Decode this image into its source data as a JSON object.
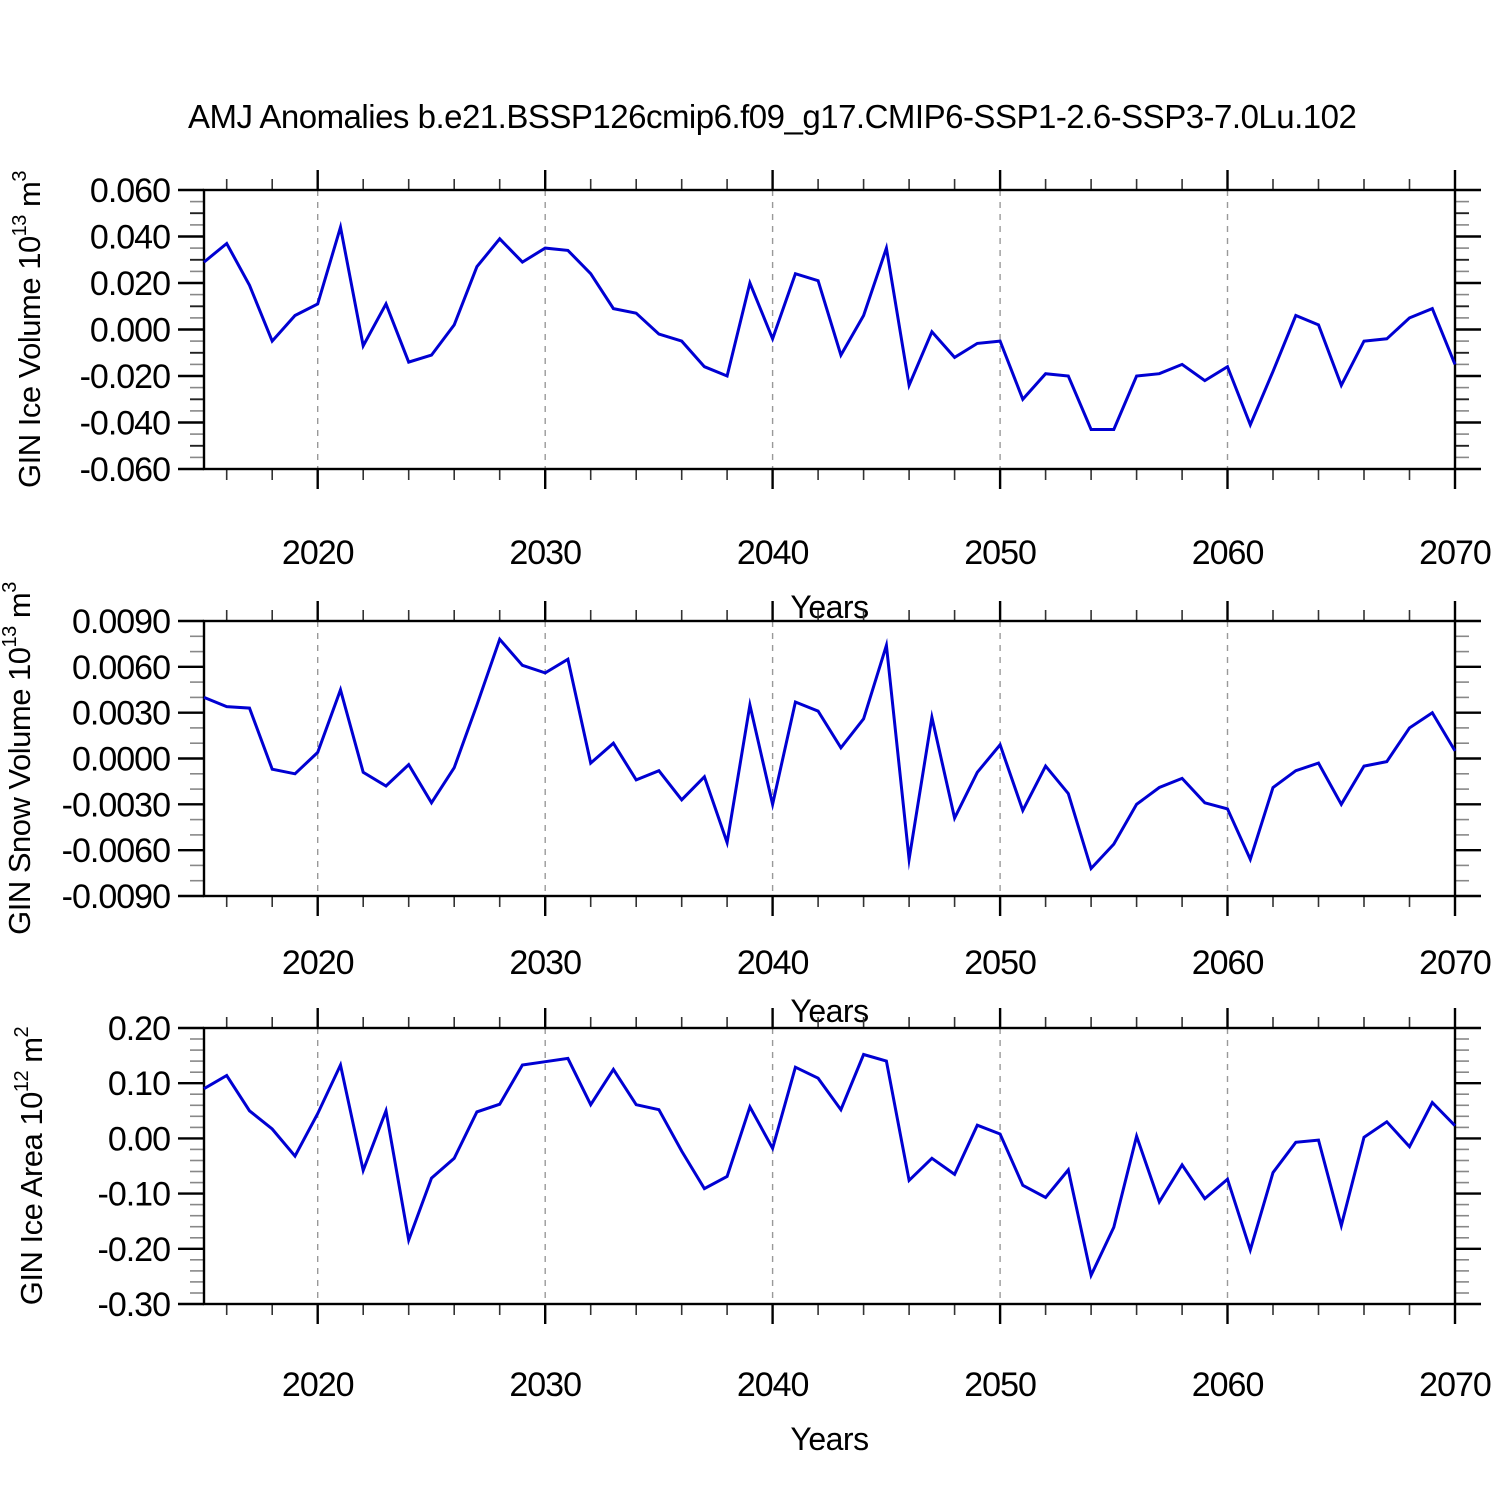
{
  "title": "AMJ Anomalies b.e21.BSSP126cmip6.f09_g17.CMIP6-SSP1-2.6-SSP3-7.0Lu.102",
  "colors": {
    "line": "#0000D2",
    "grid": "#999999",
    "axis": "#000000",
    "background": "#FFFFFF"
  },
  "chart_data": [
    {
      "type": "line",
      "name": "gin-ice-volume",
      "ylabel": "GIN Ice Volume 10^13 m^3",
      "ylabel_parts": [
        {
          "t": "GIN Ice Volume 10"
        },
        {
          "s": "13"
        },
        {
          "t": " m"
        },
        {
          "s": "3"
        }
      ],
      "ylim": [
        -0.06,
        0.06
      ],
      "ytick_labels": [
        "0.060",
        "0.040",
        "0.020",
        "0.000",
        "-0.020",
        "-0.040",
        "-0.060"
      ],
      "yminor_step": 0.005,
      "ymedium_step": 0.01,
      "xlabel": "Years",
      "xlim": [
        2015,
        2070
      ],
      "xtick_labels": [
        "2020",
        "2030",
        "2040",
        "2050",
        "2060",
        "2070"
      ],
      "xminor_step": 2,
      "grid_years": [
        2020,
        2030,
        2040,
        2050,
        2060
      ],
      "x_years": [
        2015,
        2016,
        2017,
        2018,
        2019,
        2020,
        2021,
        2022,
        2023,
        2024,
        2025,
        2026,
        2027,
        2028,
        2029,
        2030,
        2031,
        2032,
        2033,
        2034,
        2035,
        2036,
        2037,
        2038,
        2039,
        2040,
        2041,
        2042,
        2043,
        2044,
        2045,
        2046,
        2047,
        2048,
        2049,
        2050,
        2051,
        2052,
        2053,
        2054,
        2055,
        2056,
        2057,
        2058,
        2059,
        2060,
        2061,
        2062,
        2063,
        2064,
        2065,
        2066,
        2067,
        2068,
        2069,
        2070
      ],
      "values": [
        0.029,
        0.037,
        0.019,
        -0.005,
        0.006,
        0.011,
        0.044,
        -0.007,
        0.011,
        -0.014,
        -0.011,
        0.002,
        0.027,
        0.039,
        0.029,
        0.035,
        0.034,
        0.024,
        0.009,
        0.007,
        -0.002,
        -0.005,
        -0.016,
        -0.02,
        0.02,
        -0.004,
        0.024,
        0.021,
        -0.011,
        0.006,
        0.035,
        -0.024,
        -0.001,
        -0.012,
        -0.006,
        -0.005,
        -0.03,
        -0.019,
        -0.02,
        -0.043,
        -0.043,
        -0.02,
        -0.019,
        -0.015,
        -0.022,
        -0.016,
        -0.041,
        -0.018,
        0.006,
        0.002,
        -0.024,
        -0.005,
        -0.004,
        0.005,
        0.009,
        -0.015
      ]
    },
    {
      "type": "line",
      "name": "gin-snow-volume",
      "ylabel": "GIN Snow Volume 10^13 m^3",
      "ylabel_parts": [
        {
          "t": "GIN Snow Volume 10"
        },
        {
          "s": "13"
        },
        {
          "t": " m"
        },
        {
          "s": "3"
        }
      ],
      "ylim": [
        -0.009,
        0.009
      ],
      "ytick_labels": [
        "0.0090",
        "0.0060",
        "0.0030",
        "0.0000",
        "-0.0030",
        "-0.0060",
        "-0.0090"
      ],
      "yminor_step": 0.001,
      "ymedium_step": null,
      "xlabel": "Years",
      "xlim": [
        2015,
        2070
      ],
      "xtick_labels": [
        "2020",
        "2030",
        "2040",
        "2050",
        "2060",
        "2070"
      ],
      "xminor_step": 2,
      "grid_years": [
        2020,
        2030,
        2040,
        2050,
        2060
      ],
      "x_years": [
        2015,
        2016,
        2017,
        2018,
        2019,
        2020,
        2021,
        2022,
        2023,
        2024,
        2025,
        2026,
        2027,
        2028,
        2029,
        2030,
        2031,
        2032,
        2033,
        2034,
        2035,
        2036,
        2037,
        2038,
        2039,
        2040,
        2041,
        2042,
        2043,
        2044,
        2045,
        2046,
        2047,
        2048,
        2049,
        2050,
        2051,
        2052,
        2053,
        2054,
        2055,
        2056,
        2057,
        2058,
        2059,
        2060,
        2061,
        2062,
        2063,
        2064,
        2065,
        2066,
        2067,
        2068,
        2069,
        2070
      ],
      "values": [
        0.004,
        0.0034,
        0.0033,
        -0.0007,
        -0.001,
        0.0004,
        0.0045,
        -0.0009,
        -0.0018,
        -0.0004,
        -0.0029,
        -0.0006,
        0.0035,
        0.0078,
        0.0061,
        0.0056,
        0.0065,
        -0.0003,
        0.001,
        -0.0014,
        -0.0008,
        -0.0027,
        -0.0012,
        -0.0055,
        0.0035,
        -0.003,
        0.0037,
        0.0031,
        0.0007,
        0.0026,
        0.0074,
        -0.0066,
        0.0027,
        -0.0039,
        -0.0009,
        0.0009,
        -0.0034,
        -0.0005,
        -0.0023,
        -0.0072,
        -0.0056,
        -0.003,
        -0.0019,
        -0.0013,
        -0.0029,
        -0.0033,
        -0.0066,
        -0.0019,
        -0.0008,
        -0.0003,
        -0.003,
        -0.0005,
        -0.0002,
        0.002,
        0.003,
        0.0005
      ]
    },
    {
      "type": "line",
      "name": "gin-ice-area",
      "ylabel": "GIN Ice Area 10^12 m^2",
      "ylabel_parts": [
        {
          "t": "GIN Ice Area 10"
        },
        {
          "s": "12"
        },
        {
          "t": " m"
        },
        {
          "s": "2"
        }
      ],
      "ylim": [
        -0.3,
        0.2
      ],
      "ytick_labels": [
        "0.20",
        "0.10",
        "0.00",
        "-0.10",
        "-0.20",
        "-0.30"
      ],
      "yminor_step": 0.02,
      "ymedium_step": null,
      "xlabel": "Years",
      "xlim": [
        2015,
        2070
      ],
      "xtick_labels": [
        "2020",
        "2030",
        "2040",
        "2050",
        "2060",
        "2070"
      ],
      "xminor_step": 2,
      "grid_years": [
        2020,
        2030,
        2040,
        2050,
        2060
      ],
      "x_years": [
        2015,
        2016,
        2017,
        2018,
        2019,
        2020,
        2021,
        2022,
        2023,
        2024,
        2025,
        2026,
        2027,
        2028,
        2029,
        2030,
        2031,
        2032,
        2033,
        2034,
        2035,
        2036,
        2037,
        2038,
        2039,
        2040,
        2041,
        2042,
        2043,
        2044,
        2045,
        2046,
        2047,
        2048,
        2049,
        2050,
        2051,
        2052,
        2053,
        2054,
        2055,
        2056,
        2057,
        2058,
        2059,
        2060,
        2061,
        2062,
        2063,
        2064,
        2065,
        2066,
        2067,
        2068,
        2069,
        2070
      ],
      "values": [
        0.09,
        0.114,
        0.05,
        0.017,
        -0.032,
        0.045,
        0.133,
        -0.058,
        0.05,
        -0.184,
        -0.072,
        -0.036,
        0.048,
        0.062,
        0.133,
        0.139,
        0.145,
        0.061,
        0.125,
        0.061,
        0.052,
        -0.023,
        -0.091,
        -0.069,
        0.057,
        -0.018,
        0.129,
        0.109,
        0.052,
        0.152,
        0.14,
        -0.076,
        -0.036,
        -0.065,
        0.024,
        0.008,
        -0.085,
        -0.107,
        -0.057,
        -0.248,
        -0.161,
        0.004,
        -0.115,
        -0.048,
        -0.109,
        -0.074,
        -0.202,
        -0.062,
        -0.007,
        -0.003,
        -0.158,
        0.002,
        0.03,
        -0.015,
        0.065,
        0.023
      ]
    }
  ]
}
